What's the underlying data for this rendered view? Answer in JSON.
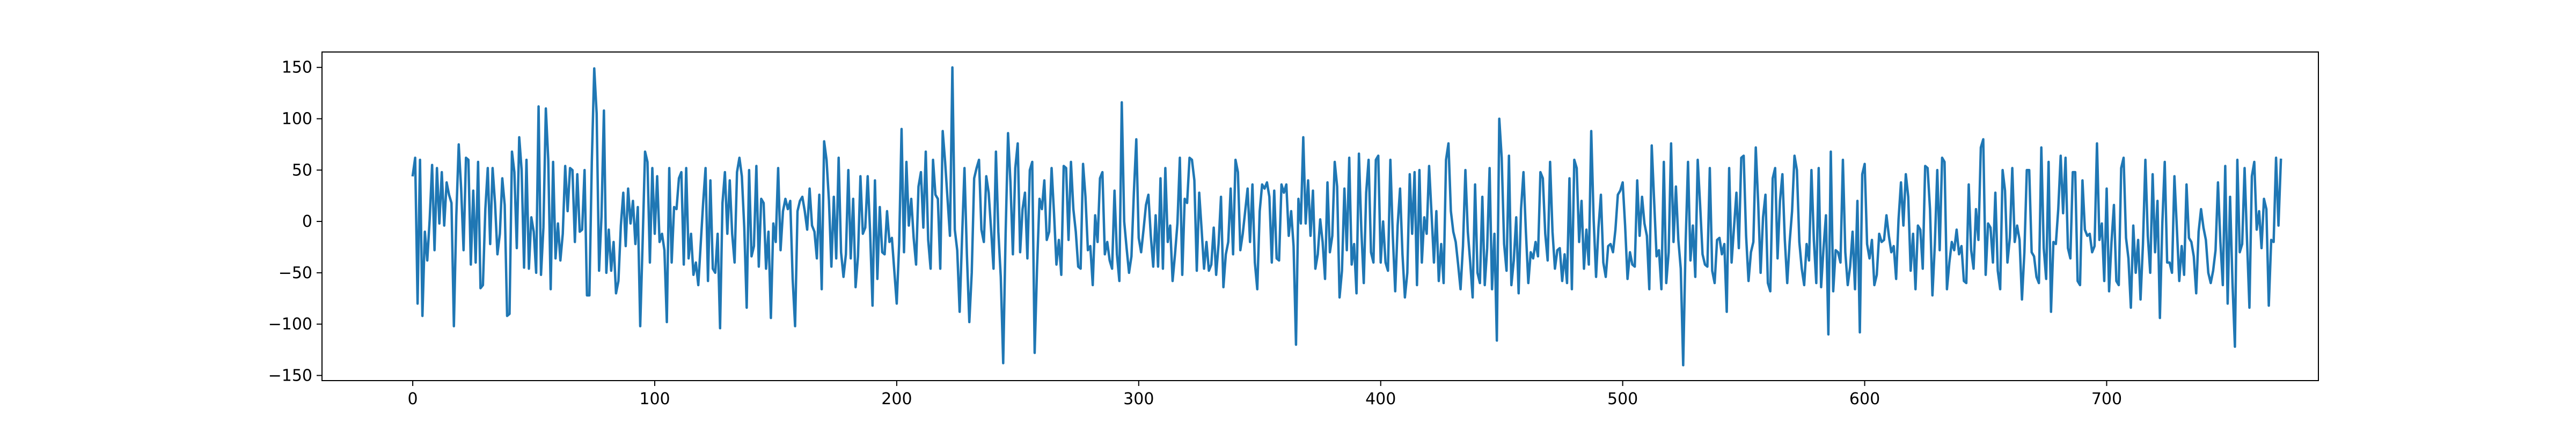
{
  "chart_data": {
    "type": "line",
    "title": "",
    "xlabel": "",
    "ylabel": "",
    "xlim": [
      -37.5,
      787.5
    ],
    "ylim": [
      -155,
      165
    ],
    "grid": false,
    "legend": "none",
    "x_ticks": [
      0,
      100,
      200,
      300,
      400,
      500,
      600,
      700
    ],
    "y_ticks": [
      -150,
      -100,
      -50,
      0,
      50,
      100,
      150
    ],
    "x_tick_labels": [
      "0",
      "100",
      "200",
      "300",
      "400",
      "500",
      "600",
      "700"
    ],
    "y_tick_labels": [
      "−150",
      "−100",
      "−50",
      "0",
      "50",
      "100",
      "150"
    ],
    "colors": {
      "line": "#1f77b4",
      "axes": "#000000",
      "background": "#ffffff"
    },
    "series": [
      {
        "values": [
          45,
          62,
          -80,
          60,
          -92,
          -10,
          -38,
          2,
          55,
          -28,
          52,
          -2,
          48,
          -4,
          38,
          26,
          18,
          -102,
          5,
          75,
          32,
          -28,
          62,
          60,
          -42,
          30,
          -40,
          58,
          -65,
          -62,
          12,
          52,
          -22,
          52,
          18,
          -32,
          -12,
          42,
          16,
          -92,
          -90,
          68,
          48,
          -26,
          82,
          50,
          -45,
          60,
          -46,
          4,
          -10,
          -50,
          112,
          -52,
          -6,
          110,
          60,
          -66,
          58,
          -36,
          -2,
          -38,
          -12,
          54,
          10,
          52,
          50,
          -20,
          46,
          -10,
          -8,
          50,
          -72,
          -72,
          58,
          149,
          105,
          -48,
          5,
          108,
          -50,
          -8,
          -48,
          -20,
          -70,
          -58,
          -4,
          28,
          -24,
          32,
          -2,
          20,
          -22,
          14,
          -102,
          -20,
          68,
          58,
          -40,
          52,
          -12,
          44,
          -20,
          -12,
          -28,
          -98,
          52,
          -40,
          14,
          12,
          42,
          48,
          -42,
          52,
          -36,
          -12,
          -52,
          -40,
          -62,
          -22,
          18,
          52,
          -58,
          40,
          -46,
          -50,
          -12,
          -104,
          18,
          48,
          -12,
          40,
          -12,
          -40,
          48,
          62,
          44,
          -6,
          -84,
          50,
          -34,
          -24,
          54,
          -44,
          22,
          18,
          -46,
          -10,
          -94,
          -2,
          -20,
          52,
          -28,
          10,
          22,
          12,
          20,
          -56,
          -102,
          10,
          20,
          24,
          10,
          -8,
          32,
          -4,
          -10,
          -36,
          26,
          -66,
          78,
          60,
          20,
          -44,
          24,
          -36,
          62,
          -30,
          -54,
          -32,
          50,
          -36,
          22,
          -64,
          -34,
          44,
          -12,
          -6,
          44,
          -10,
          -82,
          40,
          -56,
          14,
          -30,
          -32,
          10,
          -20,
          -16,
          -48,
          -80,
          -22,
          90,
          -30,
          58,
          -4,
          22,
          -16,
          -42,
          34,
          48,
          -6,
          68,
          -18,
          -46,
          60,
          26,
          22,
          -46,
          88,
          58,
          22,
          -14,
          150,
          -8,
          -28,
          -88,
          -16,
          52,
          -32,
          -98,
          -50,
          42,
          52,
          60,
          -8,
          -20,
          44,
          28,
          -8,
          -46,
          68,
          -10,
          -54,
          -138,
          -12,
          86,
          38,
          -32,
          52,
          76,
          -30,
          12,
          28,
          -36,
          50,
          58,
          -128,
          -44,
          22,
          12,
          40,
          -18,
          -10,
          52,
          8,
          -42,
          -18,
          -52,
          54,
          52,
          -18,
          58,
          12,
          -10,
          -44,
          -46,
          56,
          24,
          -28,
          -24,
          -62,
          6,
          -20,
          42,
          48,
          -32,
          -20,
          -38,
          -46,
          30,
          -32,
          -58,
          116,
          0,
          -26,
          -50,
          -34,
          28,
          80,
          -16,
          -30,
          -8,
          16,
          26,
          -14,
          -44,
          6,
          -44,
          42,
          -46,
          52,
          -20,
          -4,
          -58,
          -32,
          -2,
          62,
          -52,
          22,
          18,
          62,
          60,
          40,
          -48,
          28,
          -8,
          -46,
          -20,
          -48,
          -42,
          -6,
          -52,
          -22,
          24,
          -64,
          -32,
          -20,
          32,
          -32,
          60,
          48,
          -28,
          -12,
          10,
          32,
          -20,
          36,
          -40,
          -66,
          10,
          36,
          32,
          38,
          24,
          -40,
          30,
          -36,
          -38,
          36,
          28,
          36,
          -14,
          10,
          -24,
          -120,
          22,
          -2,
          82,
          -2,
          40,
          -14,
          30,
          -46,
          -32,
          2,
          -20,
          -56,
          38,
          -30,
          -14,
          58,
          34,
          -74,
          -48,
          32,
          -28,
          62,
          -42,
          -22,
          -70,
          66,
          -8,
          -60,
          28,
          60,
          -30,
          -40,
          60,
          64,
          -40,
          0,
          -40,
          -48,
          60,
          -14,
          -68,
          -4,
          32,
          -32,
          -74,
          -50,
          46,
          -12,
          48,
          -62,
          50,
          -40,
          4,
          -12,
          54,
          8,
          -40,
          10,
          -58,
          -22,
          -60,
          60,
          76,
          10,
          -10,
          -20,
          -42,
          -66,
          -24,
          50,
          -10,
          -40,
          -74,
          36,
          -50,
          -60,
          24,
          -62,
          -26,
          52,
          -66,
          -12,
          -116,
          100,
          62,
          -22,
          -48,
          64,
          -62,
          -38,
          4,
          -70,
          12,
          48,
          -10,
          -60,
          -30,
          -36,
          -20,
          -34,
          48,
          42,
          -12,
          -38,
          58,
          -10,
          -46,
          -28,
          -26,
          -58,
          -32,
          -60,
          42,
          -66,
          60,
          52,
          -20,
          20,
          -46,
          -8,
          -42,
          88,
          2,
          -54,
          -6,
          26,
          -40,
          -54,
          -24,
          -22,
          -30,
          -8,
          26,
          30,
          38,
          -4,
          -56,
          -30,
          -42,
          -44,
          40,
          -14,
          24,
          -2,
          -14,
          -66,
          74,
          20,
          -34,
          -28,
          -66,
          58,
          -60,
          -30,
          76,
          -20,
          34,
          -18,
          -46,
          -140,
          -22,
          58,
          -38,
          -4,
          -54,
          60,
          16,
          -32,
          -42,
          -44,
          52,
          -48,
          -60,
          -18,
          -16,
          -32,
          -22,
          -88,
          52,
          -40,
          -6,
          28,
          -26,
          62,
          64,
          -14,
          -58,
          -30,
          -20,
          72,
          18,
          -50,
          4,
          26,
          -60,
          -68,
          42,
          52,
          -36,
          20,
          46,
          -18,
          -60,
          -20,
          10,
          64,
          50,
          -20,
          -46,
          -62,
          -22,
          -38,
          50,
          -18,
          -60,
          52,
          -64,
          -26,
          6,
          -110,
          68,
          -68,
          -28,
          -30,
          -40,
          60,
          -30,
          -62,
          -44,
          -10,
          -66,
          20,
          -108,
          46,
          56,
          -22,
          -36,
          -18,
          -62,
          -52,
          -12,
          -20,
          -18,
          6,
          -14,
          -30,
          -24,
          -56,
          2,
          38,
          -4,
          46,
          24,
          -48,
          -12,
          -66,
          -4,
          -8,
          -46,
          54,
          52,
          12,
          -72,
          -22,
          50,
          -28,
          62,
          58,
          -66,
          -40,
          -20,
          -28,
          -8,
          -32,
          -24,
          -58,
          -60,
          36,
          -28,
          -46,
          12,
          -18,
          72,
          80,
          -52,
          -2,
          -6,
          -40,
          28,
          -48,
          -66,
          50,
          30,
          -40,
          -16,
          52,
          -20,
          -4,
          -18,
          -76,
          -30,
          50,
          50,
          -30,
          -34,
          -54,
          -60,
          72,
          -26,
          -56,
          58,
          -88,
          -20,
          -22,
          12,
          64,
          8,
          62,
          -26,
          -36,
          48,
          48,
          -58,
          -62,
          40,
          -8,
          -14,
          -12,
          -30,
          -24,
          76,
          -18,
          -2,
          -58,
          32,
          -68,
          -20,
          16,
          -58,
          -62,
          52,
          62,
          -16,
          -36,
          -84,
          -4,
          -50,
          -18,
          -76,
          -22,
          60,
          -14,
          -50,
          46,
          -30,
          20,
          -94,
          -2,
          58,
          -40,
          -40,
          -50,
          44,
          -6,
          -58,
          -24,
          -52,
          36,
          -16,
          -20,
          -34,
          -70,
          -10,
          12,
          -6,
          -18,
          -50,
          -60,
          -48,
          -28,
          38,
          -20,
          -62,
          54,
          -80,
          24,
          -60,
          -122,
          60,
          -30,
          -22,
          52,
          -18,
          -84,
          44,
          58,
          -8,
          10,
          -26,
          22,
          12,
          -82,
          -18,
          -20,
          62,
          -4,
          60
        ]
      }
    ]
  }
}
